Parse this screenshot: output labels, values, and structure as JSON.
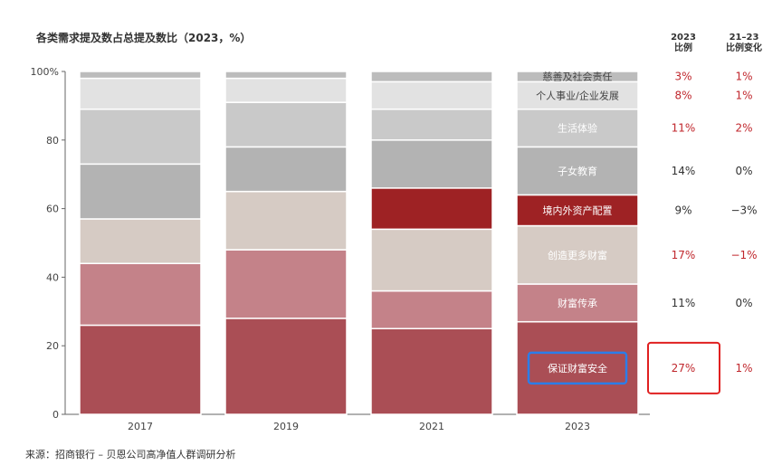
{
  "title": "各类需求提及数占总提及数比（2023，%）",
  "source": "来源：招商银行 – 贝恩公司高净值人群调研分析",
  "colors": {
    "accent_red": "#c0272d",
    "highlight_red_box": "#e02020",
    "highlight_blue_box": "#2b7de9"
  },
  "columns": {
    "share_header": [
      "2023",
      "比例"
    ],
    "change_header": [
      "21–23",
      "比例变化"
    ]
  },
  "chart_data": {
    "type": "bar",
    "stacked": true,
    "title": "各类需求提及数占总提及数比（2023，%）",
    "categories": [
      "2017",
      "2019",
      "2021",
      "2023"
    ],
    "ylim": [
      0,
      100
    ],
    "yticks": [
      "0",
      "20",
      "40",
      "60",
      "80",
      "100%"
    ],
    "ytick_values": [
      0,
      20,
      40,
      60,
      80,
      100
    ],
    "grid": false,
    "series": [
      {
        "name": "保证财富安全",
        "values": [
          26,
          28,
          25,
          27
        ],
        "color": "#aa4e55",
        "text_color": "#ffffff"
      },
      {
        "name": "财富传承",
        "values": [
          18,
          20,
          11,
          11
        ],
        "color": "#c48289",
        "text_color": "#ffffff"
      },
      {
        "name": "创造更多财富",
        "values": [
          13,
          17,
          18,
          17
        ],
        "color": "#d6cbc4",
        "text_color": "#ffffff"
      },
      {
        "name": "境内外资产配置",
        "values": [
          0,
          0,
          12,
          9
        ],
        "color": "#9e2224",
        "text_color": "#ffffff"
      },
      {
        "name": "子女教育",
        "values": [
          16,
          13,
          14,
          14
        ],
        "color": "#b3b3b3",
        "text_color": "#ffffff"
      },
      {
        "name": "生活体验",
        "values": [
          16,
          13,
          9,
          11
        ],
        "color": "#c9c9c9",
        "text_color": "#ffffff"
      },
      {
        "name": "个人事业/企业发展",
        "values": [
          9,
          7,
          8,
          8
        ],
        "color": "#e2e2e2",
        "text_color": "#444444"
      },
      {
        "name": "慈善及社会责任",
        "values": [
          2,
          2,
          3,
          3
        ],
        "color": "#bcbcbc",
        "text_color": "#444444"
      }
    ],
    "share_2023": [
      "27%",
      "11%",
      "17%",
      "9%",
      "14%",
      "11%",
      "8%",
      "3%"
    ],
    "change_21_23": [
      "1%",
      "0%",
      "−1%",
      "−3%",
      "0%",
      "2%",
      "1%",
      "1%"
    ],
    "share_red": [
      true,
      false,
      true,
      false,
      false,
      true,
      true,
      true
    ],
    "change_red": [
      true,
      false,
      true,
      false,
      false,
      true,
      true,
      true
    ],
    "highlight_blue_segment": "保证财富安全",
    "highlight_red_box_row": "保证财富安全"
  }
}
